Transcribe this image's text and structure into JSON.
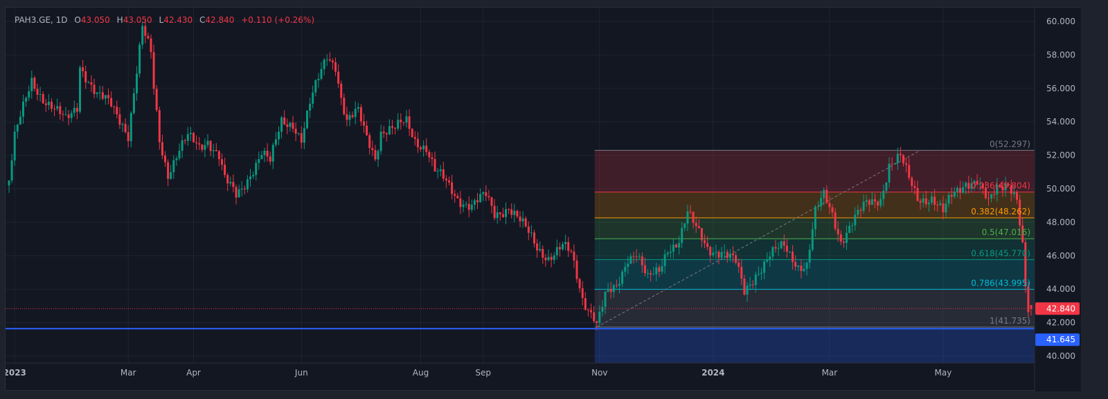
{
  "legend": {
    "symbol": "PAH3.GE, 1D",
    "open_label": "O",
    "open": "43.050",
    "high_label": "H",
    "high": "43.050",
    "low_label": "L",
    "low": "42.430",
    "close_label": "C",
    "close": "42.840",
    "change": "+0.110 (+0.26%)"
  },
  "colors": {
    "up": "#089981",
    "down": "#f23645",
    "background": "#131722",
    "grid": "#1f2430",
    "axis_text": "#b2b5be",
    "blue_line": "#2962ff"
  },
  "chart_data": {
    "type": "candlestick",
    "title": "PAH3.GE, 1D",
    "ylim": [
      40,
      60
    ],
    "y_ticks": [
      "40.000",
      "42.000",
      "44.000",
      "46.000",
      "48.000",
      "50.000",
      "52.000",
      "54.000",
      "56.000",
      "58.000",
      "60.000"
    ],
    "x_ticks": [
      {
        "bar": 2,
        "label": "2023"
      },
      {
        "bar": 42,
        "label": "Mar"
      },
      {
        "bar": 65,
        "label": "Apr"
      },
      {
        "bar": 103,
        "label": "Jun"
      },
      {
        "bar": 145,
        "label": "Aug"
      },
      {
        "bar": 167,
        "label": "Sep"
      },
      {
        "bar": 208,
        "label": "Nov"
      },
      {
        "bar": 248,
        "label": "2024"
      },
      {
        "bar": 289,
        "label": "Mar"
      },
      {
        "bar": 329,
        "label": "May"
      }
    ],
    "close_path": [
      [
        0,
        50.5
      ],
      [
        2,
        53
      ],
      [
        8,
        56.5
      ],
      [
        12,
        55.5
      ],
      [
        17,
        54.5
      ],
      [
        20,
        54
      ],
      [
        24,
        55
      ],
      [
        25,
        57.5
      ],
      [
        28,
        56.5
      ],
      [
        31,
        55.5
      ],
      [
        36,
        55
      ],
      [
        40,
        54
      ],
      [
        42,
        53.3
      ],
      [
        45,
        57
      ],
      [
        47,
        59.5
      ],
      [
        50,
        58
      ],
      [
        51,
        56
      ],
      [
        53,
        53
      ],
      [
        56,
        51
      ],
      [
        59,
        52
      ],
      [
        63,
        53
      ],
      [
        67,
        52.5
      ],
      [
        70,
        53
      ],
      [
        74,
        52
      ],
      [
        76,
        50.5
      ],
      [
        80,
        49.5
      ],
      [
        82,
        50
      ],
      [
        85,
        51
      ],
      [
        89,
        52.2
      ],
      [
        92,
        51.5
      ],
      [
        96,
        54
      ],
      [
        100,
        54
      ],
      [
        103,
        53
      ],
      [
        106,
        55
      ],
      [
        109,
        56.5
      ],
      [
        112,
        58
      ],
      [
        115,
        57.5
      ],
      [
        117,
        55.5
      ],
      [
        119,
        54
      ],
      [
        123,
        54.5
      ],
      [
        125,
        53.5
      ],
      [
        129,
        52
      ],
      [
        131,
        53.5
      ],
      [
        136,
        53.5
      ],
      [
        140,
        54
      ],
      [
        143,
        53
      ],
      [
        147,
        52.5
      ],
      [
        150,
        51
      ],
      [
        153,
        50.5
      ],
      [
        158,
        49.5
      ],
      [
        163,
        49
      ],
      [
        168,
        49.5
      ],
      [
        171,
        48.5
      ],
      [
        176,
        49
      ],
      [
        182,
        47.5
      ],
      [
        186,
        46.5
      ],
      [
        190,
        46
      ],
      [
        195,
        46.5
      ],
      [
        198,
        46
      ],
      [
        202,
        43.5
      ],
      [
        206,
        42.5
      ],
      [
        207,
        42
      ],
      [
        210,
        43.5
      ],
      [
        214,
        44
      ],
      [
        218,
        46
      ],
      [
        221,
        46.3
      ],
      [
        225,
        44.5
      ],
      [
        229,
        45
      ],
      [
        232,
        46.5
      ],
      [
        236,
        47
      ],
      [
        239,
        48.5
      ],
      [
        242,
        47.5
      ],
      [
        246,
        46.5
      ],
      [
        251,
        46.3
      ],
      [
        256,
        45.5
      ],
      [
        259,
        43.8
      ],
      [
        263,
        45
      ],
      [
        268,
        46
      ],
      [
        273,
        46.5
      ],
      [
        278,
        45.5
      ],
      [
        281,
        45.5
      ],
      [
        284,
        48.5
      ],
      [
        287,
        49.5
      ],
      [
        290,
        48.5
      ],
      [
        293,
        47
      ],
      [
        297,
        48
      ],
      [
        302,
        49
      ],
      [
        307,
        49.5
      ],
      [
        310,
        51.5
      ],
      [
        314,
        51.8
      ],
      [
        317,
        50.5
      ],
      [
        320,
        49.5
      ],
      [
        325,
        49.5
      ],
      [
        329,
        48.5
      ],
      [
        332,
        49.5
      ],
      [
        337,
        50.5
      ],
      [
        341,
        50.5
      ],
      [
        345,
        49
      ],
      [
        348,
        50
      ],
      [
        352,
        50.5
      ],
      [
        355,
        49.5
      ],
      [
        357,
        46.5
      ],
      [
        358,
        44
      ],
      [
        359,
        42.5
      ]
    ],
    "last_bar": {
      "bar": 360,
      "open": 43.05,
      "high": 43.05,
      "low": 42.43,
      "close": 42.84
    },
    "last_price": {
      "value": 42.84,
      "label": "42.840"
    },
    "horizontal_line": {
      "value": 41.645,
      "label": "41.645"
    },
    "fibonacci": {
      "start": {
        "bar": 207,
        "price": 41.735
      },
      "end": {
        "bar": 321,
        "price": 52.297
      },
      "levels": [
        {
          "ratio": 0,
          "price": 52.297,
          "label": "0(52.297)",
          "color": "#787b86",
          "fill": "#f23645"
        },
        {
          "ratio": 0.236,
          "price": 49.804,
          "label": "0.236(49.804)",
          "color": "#f23645",
          "fill": "#ff9800"
        },
        {
          "ratio": 0.382,
          "price": 48.262,
          "label": "0.382(48.262)",
          "color": "#ff9800",
          "fill": "#4caf50"
        },
        {
          "ratio": 0.5,
          "price": 47.016,
          "label": "0.5(47.016)",
          "color": "#4caf50",
          "fill": "#089981"
        },
        {
          "ratio": 0.618,
          "price": 45.77,
          "label": "0.618(45.770)",
          "color": "#089981",
          "fill": "#00bcd4"
        },
        {
          "ratio": 0.786,
          "price": 43.995,
          "label": "0.786(43.995)",
          "color": "#00bcd4",
          "fill": "#787b86"
        },
        {
          "ratio": 1,
          "price": 41.735,
          "label": "1(41.735)",
          "color": "#787b86",
          "fill": null
        }
      ]
    }
  }
}
